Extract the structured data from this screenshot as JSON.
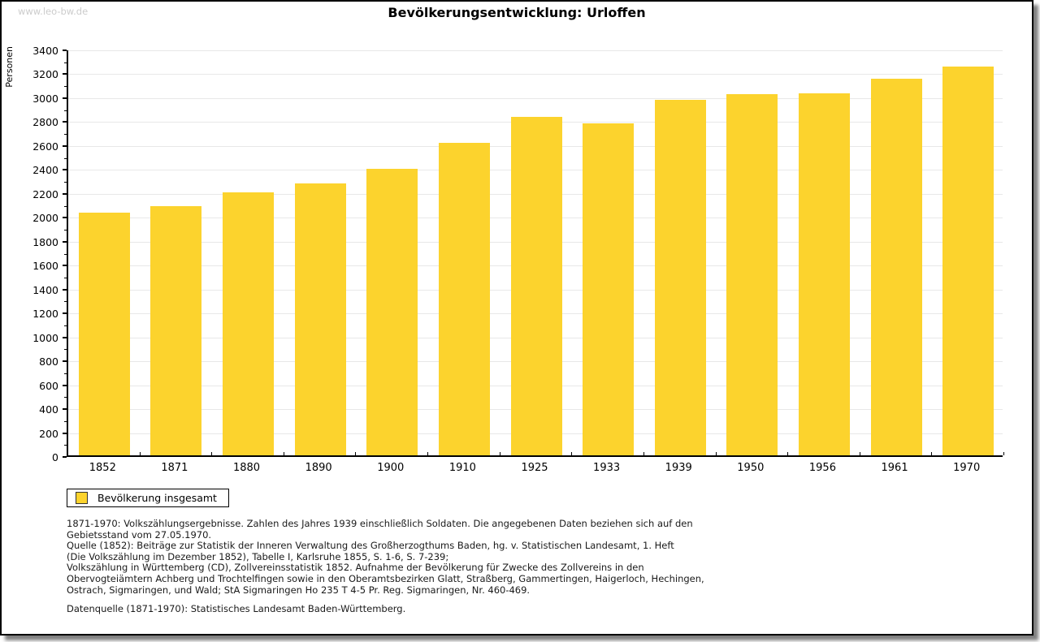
{
  "watermark": "www.leo-bw.de",
  "chart_data": {
    "type": "bar",
    "title": "Bevölkerungsentwicklung: Urloffen",
    "xlabel": "",
    "ylabel": "Personen",
    "categories": [
      "1852",
      "1871",
      "1880",
      "1890",
      "1900",
      "1910",
      "1925",
      "1933",
      "1939",
      "1950",
      "1956",
      "1961",
      "1970"
    ],
    "series": [
      {
        "name": "Bevölkerung insgesamt",
        "values": [
          2030,
          2085,
          2200,
          2275,
          2395,
          2615,
          2830,
          2775,
          2970,
          3020,
          3030,
          3150,
          3250
        ]
      }
    ],
    "ylim": [
      0,
      3400
    ],
    "ytick_step": 200,
    "yminor_step": 100,
    "grid": true,
    "legend_position": "bottom-left",
    "bar_color": "#fcd32d",
    "grid_color": "#e8e8e8"
  },
  "legend": {
    "label": "Bevölkerung insgesamt"
  },
  "notes": {
    "lines": [
      "1871-1970: Volkszählungsergebnisse. Zahlen des Jahres 1939 einschließlich Soldaten. Die angegebenen Daten beziehen sich auf den",
      "Gebietsstand vom 27.05.1970.",
      "Quelle (1852): Beiträge zur Statistik der Inneren Verwaltung des Großherzogthums Baden, hg. v. Statistischen Landesamt, 1. Heft",
      "(Die Volkszählung im Dezember 1852), Tabelle I, Karlsruhe 1855, S. 1-6, S. 7-239;",
      "Volkszählung in Württemberg (CD), Zollvereinsstatistik 1852. Aufnahme der Bevölkerung für Zwecke des Zollvereins in den",
      "Obervogteiämtern Achberg und Trochtelfingen sowie in den Oberamtsbezirken Glatt, Straßberg, Gammertingen, Haigerloch, Hechingen,",
      "Ostrach, Sigmaringen, und Wald; StA Sigmaringen Ho 235 T 4-5 Pr. Reg. Sigmaringen, Nr. 460-469."
    ],
    "datasource": "Datenquelle (1871-1970): Statistisches Landesamt Baden-Württemberg."
  }
}
